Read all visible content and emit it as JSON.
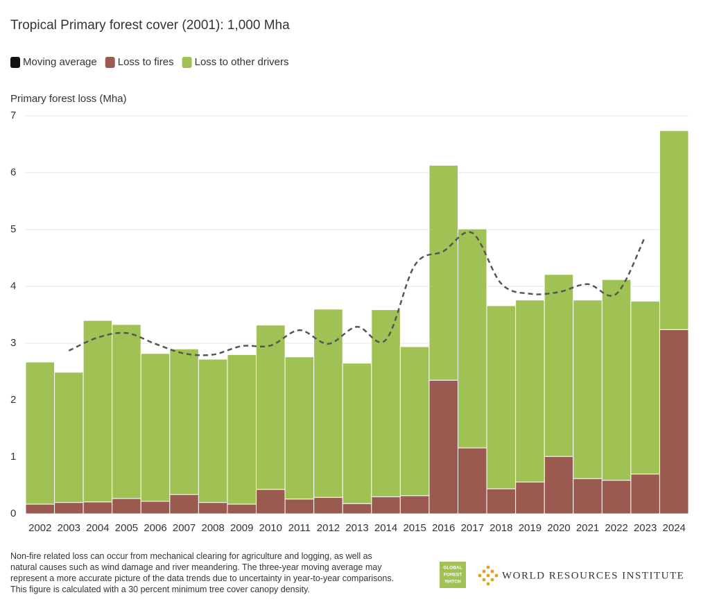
{
  "chart_data": {
    "type": "bar",
    "stacked": true,
    "title": "Tropical Primary forest cover (2001): 1,000 Mha",
    "y_label": "Primary forest loss (Mha)",
    "categories": [
      "2002",
      "2003",
      "2004",
      "2005",
      "2006",
      "2007",
      "2008",
      "2009",
      "2010",
      "2011",
      "2012",
      "2013",
      "2014",
      "2015",
      "2016",
      "2017",
      "2018",
      "2019",
      "2020",
      "2021",
      "2022",
      "2023",
      "2024"
    ],
    "series": [
      {
        "name": "Loss to fires",
        "type": "bar",
        "color": "#9b5a4f",
        "values": [
          0.17,
          0.2,
          0.21,
          0.27,
          0.22,
          0.34,
          0.2,
          0.17,
          0.43,
          0.26,
          0.29,
          0.18,
          0.3,
          0.32,
          2.35,
          1.16,
          0.44,
          0.56,
          1.01,
          0.62,
          0.59,
          0.7,
          3.24
        ]
      },
      {
        "name": "Loss to other drivers",
        "type": "bar",
        "color": "#a0c154",
        "values": [
          2.5,
          2.29,
          3.19,
          3.06,
          2.6,
          2.56,
          2.52,
          2.63,
          2.89,
          2.5,
          3.31,
          2.47,
          3.29,
          2.62,
          3.78,
          3.85,
          3.22,
          3.2,
          3.2,
          3.14,
          3.53,
          3.04,
          3.5
        ]
      },
      {
        "name": "Moving average",
        "type": "line",
        "color": "#555555",
        "legend_color": "#111111",
        "dashed": true,
        "values": [
          null,
          2.87,
          3.1,
          3.18,
          2.99,
          2.82,
          2.8,
          2.95,
          2.96,
          3.23,
          2.99,
          3.29,
          3.06,
          4.37,
          4.62,
          4.94,
          4.05,
          3.87,
          3.9,
          4.04,
          3.87,
          4.88,
          null
        ]
      }
    ],
    "ylim": [
      0,
      7
    ],
    "yticks": [
      0,
      1,
      2,
      3,
      4,
      5,
      6,
      7
    ],
    "grid": true
  },
  "footnote": "Non-fire related loss can occur from mechanical clearing for agriculture and logging, as well as natural causes such as wind damage and river meandering. The three-year moving average may represent a more accurate picture of the data trends due to uncertainty in year-to-year comparisons. This figure is calculated with a 30 percent minimum tree cover canopy density.",
  "logos": {
    "gfw": [
      "GLOBAL",
      "FOREST",
      "WATCH"
    ],
    "wri": "WORLD RESOURCES INSTITUTE"
  }
}
